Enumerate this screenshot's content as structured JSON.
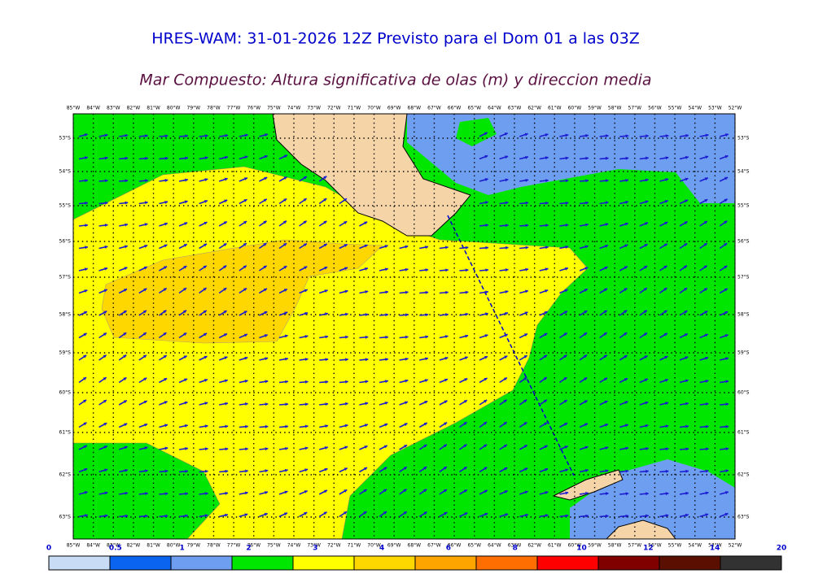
{
  "header": {
    "title": "HRES-WAM: 31-01-2026 12Z Previsto para el Dom 01 a las 03Z",
    "subtitle": "Mar Compuesto: Altura significativa de olas (m) y direccion media"
  },
  "map": {
    "longitudes": [
      "85°W",
      "84°W",
      "83°W",
      "82°W",
      "81°W",
      "80°W",
      "79°W",
      "78°W",
      "77°W",
      "76°W",
      "75°W",
      "74°W",
      "73°W",
      "72°W",
      "71°W",
      "70°W",
      "69°W",
      "68°W",
      "67°W",
      "66°W",
      "65°W",
      "64°W",
      "63°W",
      "62°W",
      "61°W",
      "60°W",
      "59°W",
      "58°W",
      "57°W",
      "56°W",
      "55°W",
      "54°W",
      "53°W",
      "52°W"
    ],
    "latitudes": [
      "53°S",
      "54°S",
      "55°S",
      "56°S",
      "57°S",
      "58°S",
      "59°S",
      "60°S",
      "61°S",
      "62°S",
      "63°S"
    ]
  },
  "legend": {
    "labels": [
      "0",
      "0.5",
      "1",
      "2",
      "3",
      "4",
      "6",
      "8",
      "10",
      "12",
      "14",
      "20"
    ],
    "colors": [
      "#c8dcf5",
      "#0a64f0",
      "#6e9ef0",
      "#00e600",
      "#ffff00",
      "#ffd700",
      "#ffa500",
      "#ff6e00",
      "#ff0000",
      "#800000",
      "#5a0f00",
      "#323232"
    ]
  }
}
